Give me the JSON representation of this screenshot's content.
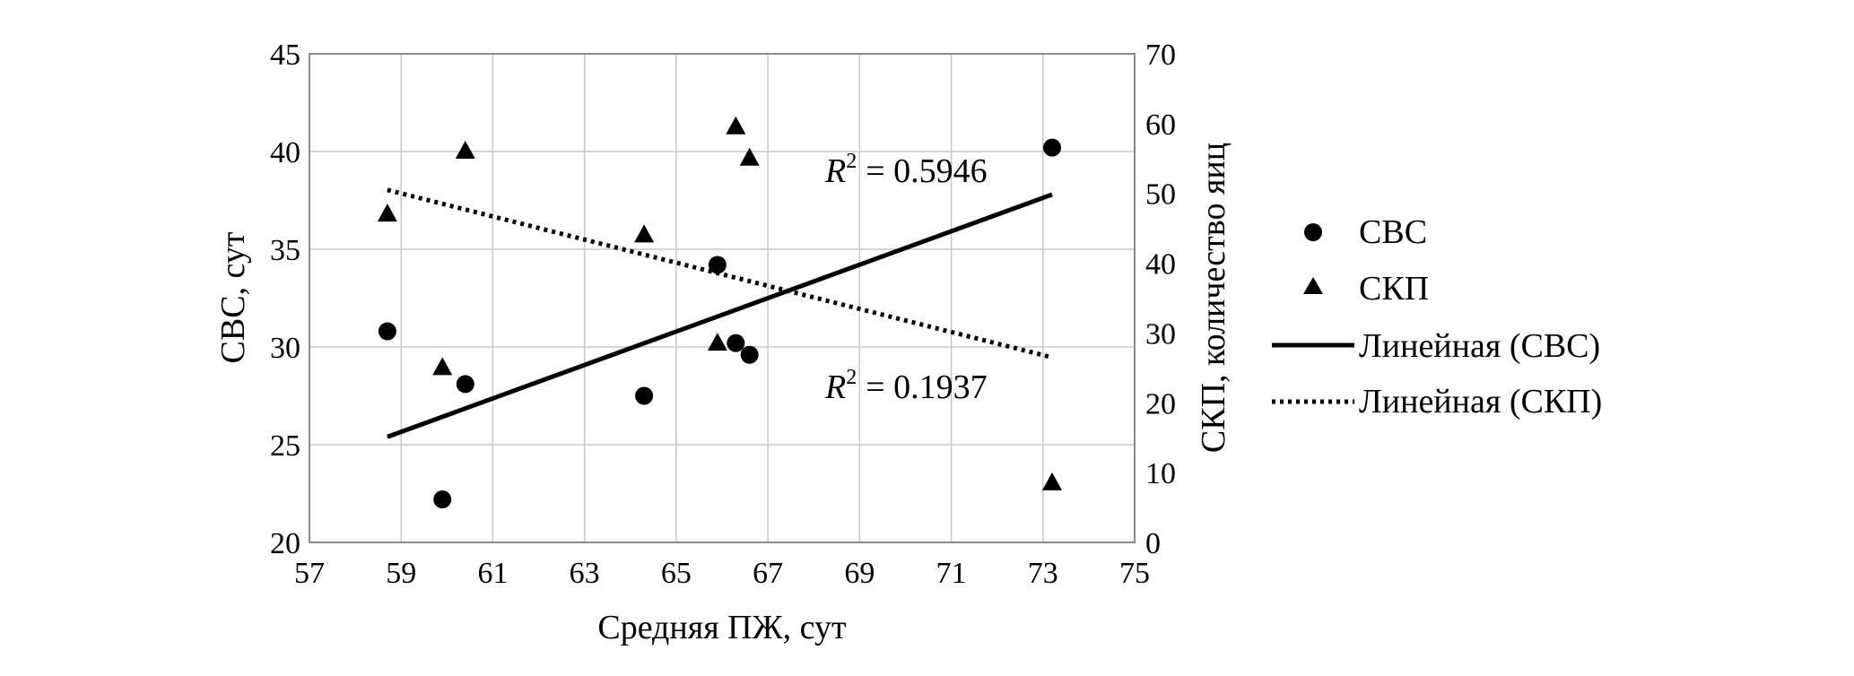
{
  "chart_data": {
    "type": "scatter",
    "xlabel": "Средняя ПЖ, сут",
    "ylabel": "СВС, сут",
    "y2label": "СКП, количество яиц",
    "xlim": [
      57,
      75
    ],
    "ylim": [
      20,
      45
    ],
    "y2lim": [
      0,
      70
    ],
    "xticks": [
      "57",
      "59",
      "61",
      "63",
      "65",
      "67",
      "69",
      "71",
      "73",
      "75"
    ],
    "yticks": [
      "20",
      "25",
      "30",
      "35",
      "40",
      "45"
    ],
    "y2ticks": [
      "0",
      "10",
      "20",
      "30",
      "40",
      "50",
      "60",
      "70"
    ],
    "grid": true,
    "legend_position": "right",
    "series": [
      {
        "name": "СВС",
        "marker": "circle",
        "axis": "left",
        "points": [
          {
            "x": 58.7,
            "y": 30.8
          },
          {
            "x": 59.9,
            "y": 22.2
          },
          {
            "x": 60.4,
            "y": 28.1
          },
          {
            "x": 64.3,
            "y": 27.5
          },
          {
            "x": 65.9,
            "y": 34.2
          },
          {
            "x": 66.3,
            "y": 30.2
          },
          {
            "x": 66.6,
            "y": 29.6
          },
          {
            "x": 73.2,
            "y": 40.2
          }
        ]
      },
      {
        "name": "СКП",
        "marker": "triangle",
        "axis": "right",
        "points": [
          {
            "x": 58.7,
            "y": 47
          },
          {
            "x": 59.9,
            "y": 25
          },
          {
            "x": 60.4,
            "y": 56
          },
          {
            "x": 64.3,
            "y": 44
          },
          {
            "x": 65.9,
            "y": 28.5
          },
          {
            "x": 66.3,
            "y": 59.5
          },
          {
            "x": 66.6,
            "y": 55
          },
          {
            "x": 73.2,
            "y": 8.5
          }
        ]
      }
    ],
    "trendlines": [
      {
        "name": "Линейная (СВС)",
        "style": "solid",
        "axis": "left",
        "x": [
          58.7,
          73.2
        ],
        "y": [
          25.4,
          37.8
        ],
        "r2_label": "= 0.5946"
      },
      {
        "name": "Линейная (СКП)",
        "style": "dotted",
        "axis": "right",
        "x": [
          58.7,
          73.2
        ],
        "y": [
          50.5,
          26.5
        ],
        "r2_label": "= 0.1937"
      }
    ],
    "r2_symbol": "R",
    "r2_sup": "2"
  }
}
